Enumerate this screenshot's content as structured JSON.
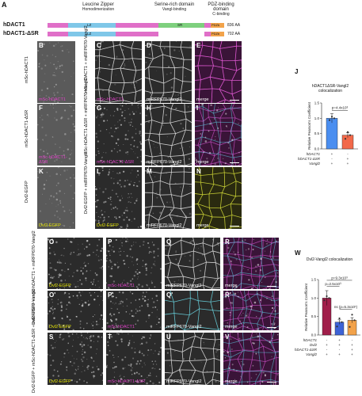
{
  "domain_diagram": {
    "panel_letter": "A",
    "domains": [
      {
        "name": "Leucine Zipper",
        "sub": "Homodimerization"
      },
      {
        "name": "Serine-rich domain",
        "sub": "Vangl-binding"
      },
      {
        "name": "PDZ-binding domain",
        "sub": "C-binding"
      }
    ],
    "constructs": [
      {
        "name": "hDACT1",
        "length": "836 AA",
        "segments": [
          "LZ",
          "SR",
          "PDZb"
        ]
      },
      {
        "name": "hDACT1-ΔSR",
        "length": "702 AA",
        "segments": [
          "LZ",
          "PDZb"
        ]
      }
    ],
    "colors": {
      "lz": "#7fc7e8",
      "sr": "#7ed07e",
      "pdz": "#f2a34a",
      "linker": "#e06fc8"
    }
  },
  "panels": [
    {
      "id": "B",
      "caption": "mSc-hDACT1",
      "color": "#e040c8",
      "style": "faint"
    },
    {
      "id": "C",
      "caption": "mSc-hDACT1",
      "color": "#e040c8",
      "style": "cells"
    },
    {
      "id": "D",
      "caption": "miRFP670-Vangl2",
      "color": "#ffffff",
      "style": "cells"
    },
    {
      "id": "E",
      "caption": "merge",
      "color": "#ffffff",
      "style": "merge_m"
    },
    {
      "id": "F",
      "caption": "mSc-hDACT1-ΔSR",
      "color": "#e040c8",
      "style": "faint"
    },
    {
      "id": "G",
      "caption": "mSc-hDACT1-ΔSR",
      "color": "#e040c8",
      "style": "speck"
    },
    {
      "id": "H",
      "caption": "miRFP670-Vangl2",
      "color": "#ffffff",
      "style": "cells"
    },
    {
      "id": "I",
      "caption": "merge",
      "color": "#ffffff",
      "style": "merge_mc"
    },
    {
      "id": "K",
      "caption": "Dvl2-EGFP",
      "color": "#e6e600",
      "style": "faint"
    },
    {
      "id": "L",
      "caption": "Dvl2-EGFP",
      "color": "#e6e600",
      "style": "speck"
    },
    {
      "id": "M",
      "caption": "miRFP670-Vangl2",
      "color": "#ffffff",
      "style": "cells"
    },
    {
      "id": "N",
      "caption": "merge",
      "color": "#ffffff",
      "style": "merge_y"
    },
    {
      "id": "O",
      "caption": "Dvl2-EGFP",
      "color": "#e6e600",
      "style": "speck"
    },
    {
      "id": "P",
      "caption": "mSc-hDACT1",
      "color": "#e040c8",
      "style": "speck"
    },
    {
      "id": "Q",
      "caption": "miRFP670-Vangl2",
      "color": "#ffffff",
      "style": "cells"
    },
    {
      "id": "R",
      "caption": "merge",
      "color": "#ffffff",
      "style": "merge_mc"
    },
    {
      "id": "O'",
      "caption": "Dvl2-EGFP",
      "color": "#e6e600",
      "style": "zoom"
    },
    {
      "id": "P'",
      "caption": "mSc-hDACT1",
      "color": "#e040c8",
      "style": "zoom"
    },
    {
      "id": "Q'",
      "caption": "miRFP670-Vangl2",
      "color": "#ffffff",
      "style": "zoom_c"
    },
    {
      "id": "R'",
      "caption": "merge",
      "color": "#ffffff",
      "style": "merge_mc"
    },
    {
      "id": "S",
      "caption": "Dvl2-EGFP",
      "color": "#e6e600",
      "style": "speck"
    },
    {
      "id": "T",
      "caption": "mSc-hDACT1-ΔSR",
      "color": "#e040c8",
      "style": "speck"
    },
    {
      "id": "U",
      "caption": "miRFP670-Vangl2",
      "color": "#ffffff",
      "style": "cells"
    },
    {
      "id": "V",
      "caption": "merge",
      "color": "#ffffff",
      "style": "merge_mc"
    }
  ],
  "row_labels": {
    "r1_left": "mSc-hDACT1",
    "r1_mid": "mSc-hDACT1 + miRFP670-Vangl2",
    "r2_left": "mSc-hDACT1-ΔSR",
    "r2_mid": "mSc-hDACT1-ΔSR + miRFP670-Vangl2",
    "r3_left": "Dvl2-EGFP",
    "r3_mid": "Dvl2-EGFP + miRFP670-Vangl2",
    "r4": "Dvl2-EGFP + mSc-hDACT1 + miRFP670-Vangl2",
    "r5": "Dvl2-EGFP + mSc-hDACT1-ΔSR + miRFP670-Vangl2"
  },
  "chart_data": [
    {
      "id": "J",
      "type": "bar",
      "title": "hDACT1ΔSR-Vangl2 colocalization",
      "ylabel": "Relative Pearson's Coefficient",
      "ylim": [
        0,
        1.5
      ],
      "yticks": [
        0.0,
        0.5,
        1.0,
        1.5
      ],
      "values": [
        1.0,
        0.45
      ],
      "errors": [
        0.15,
        0.08
      ],
      "colors": [
        "#4a8ef0",
        "#f2694a"
      ],
      "pvalue_label": "p=4.4x10³",
      "rows": [
        {
          "label": "hDACT1",
          "marks": [
            "+",
            "-"
          ]
        },
        {
          "label": "hDACT1-ΔSR",
          "marks": [
            "-",
            "+"
          ]
        },
        {
          "label": "Vangl2",
          "marks": [
            "+",
            "+"
          ]
        }
      ]
    },
    {
      "id": "W",
      "type": "bar",
      "title": "Dvl2-Vangl2 colocalization",
      "ylabel": "Relative Pearson's Coefficient",
      "ylim": [
        0,
        1.5
      ],
      "yticks": [
        0.0,
        0.5,
        1.0,
        1.5
      ],
      "values": [
        1.0,
        0.35,
        0.4
      ],
      "errors": [
        0.2,
        0.06,
        0.07
      ],
      "colors": [
        "#a01e4a",
        "#3d63d6",
        "#f2a24a"
      ],
      "pvalue_labels": [
        "p=9.3x10³",
        "p=2.5x10³",
        "ns (p=5.3x10¹)"
      ],
      "rows": [
        {
          "label": "hDACT1",
          "marks": [
            "-",
            "+",
            "-"
          ]
        },
        {
          "label": "Dvl2",
          "marks": [
            "+",
            "+",
            "+"
          ]
        },
        {
          "label": "hDACT1-ΔSR",
          "marks": [
            "-",
            "-",
            "+"
          ]
        },
        {
          "label": "Vangl2",
          "marks": [
            "+",
            "+",
            "+"
          ]
        }
      ]
    }
  ]
}
